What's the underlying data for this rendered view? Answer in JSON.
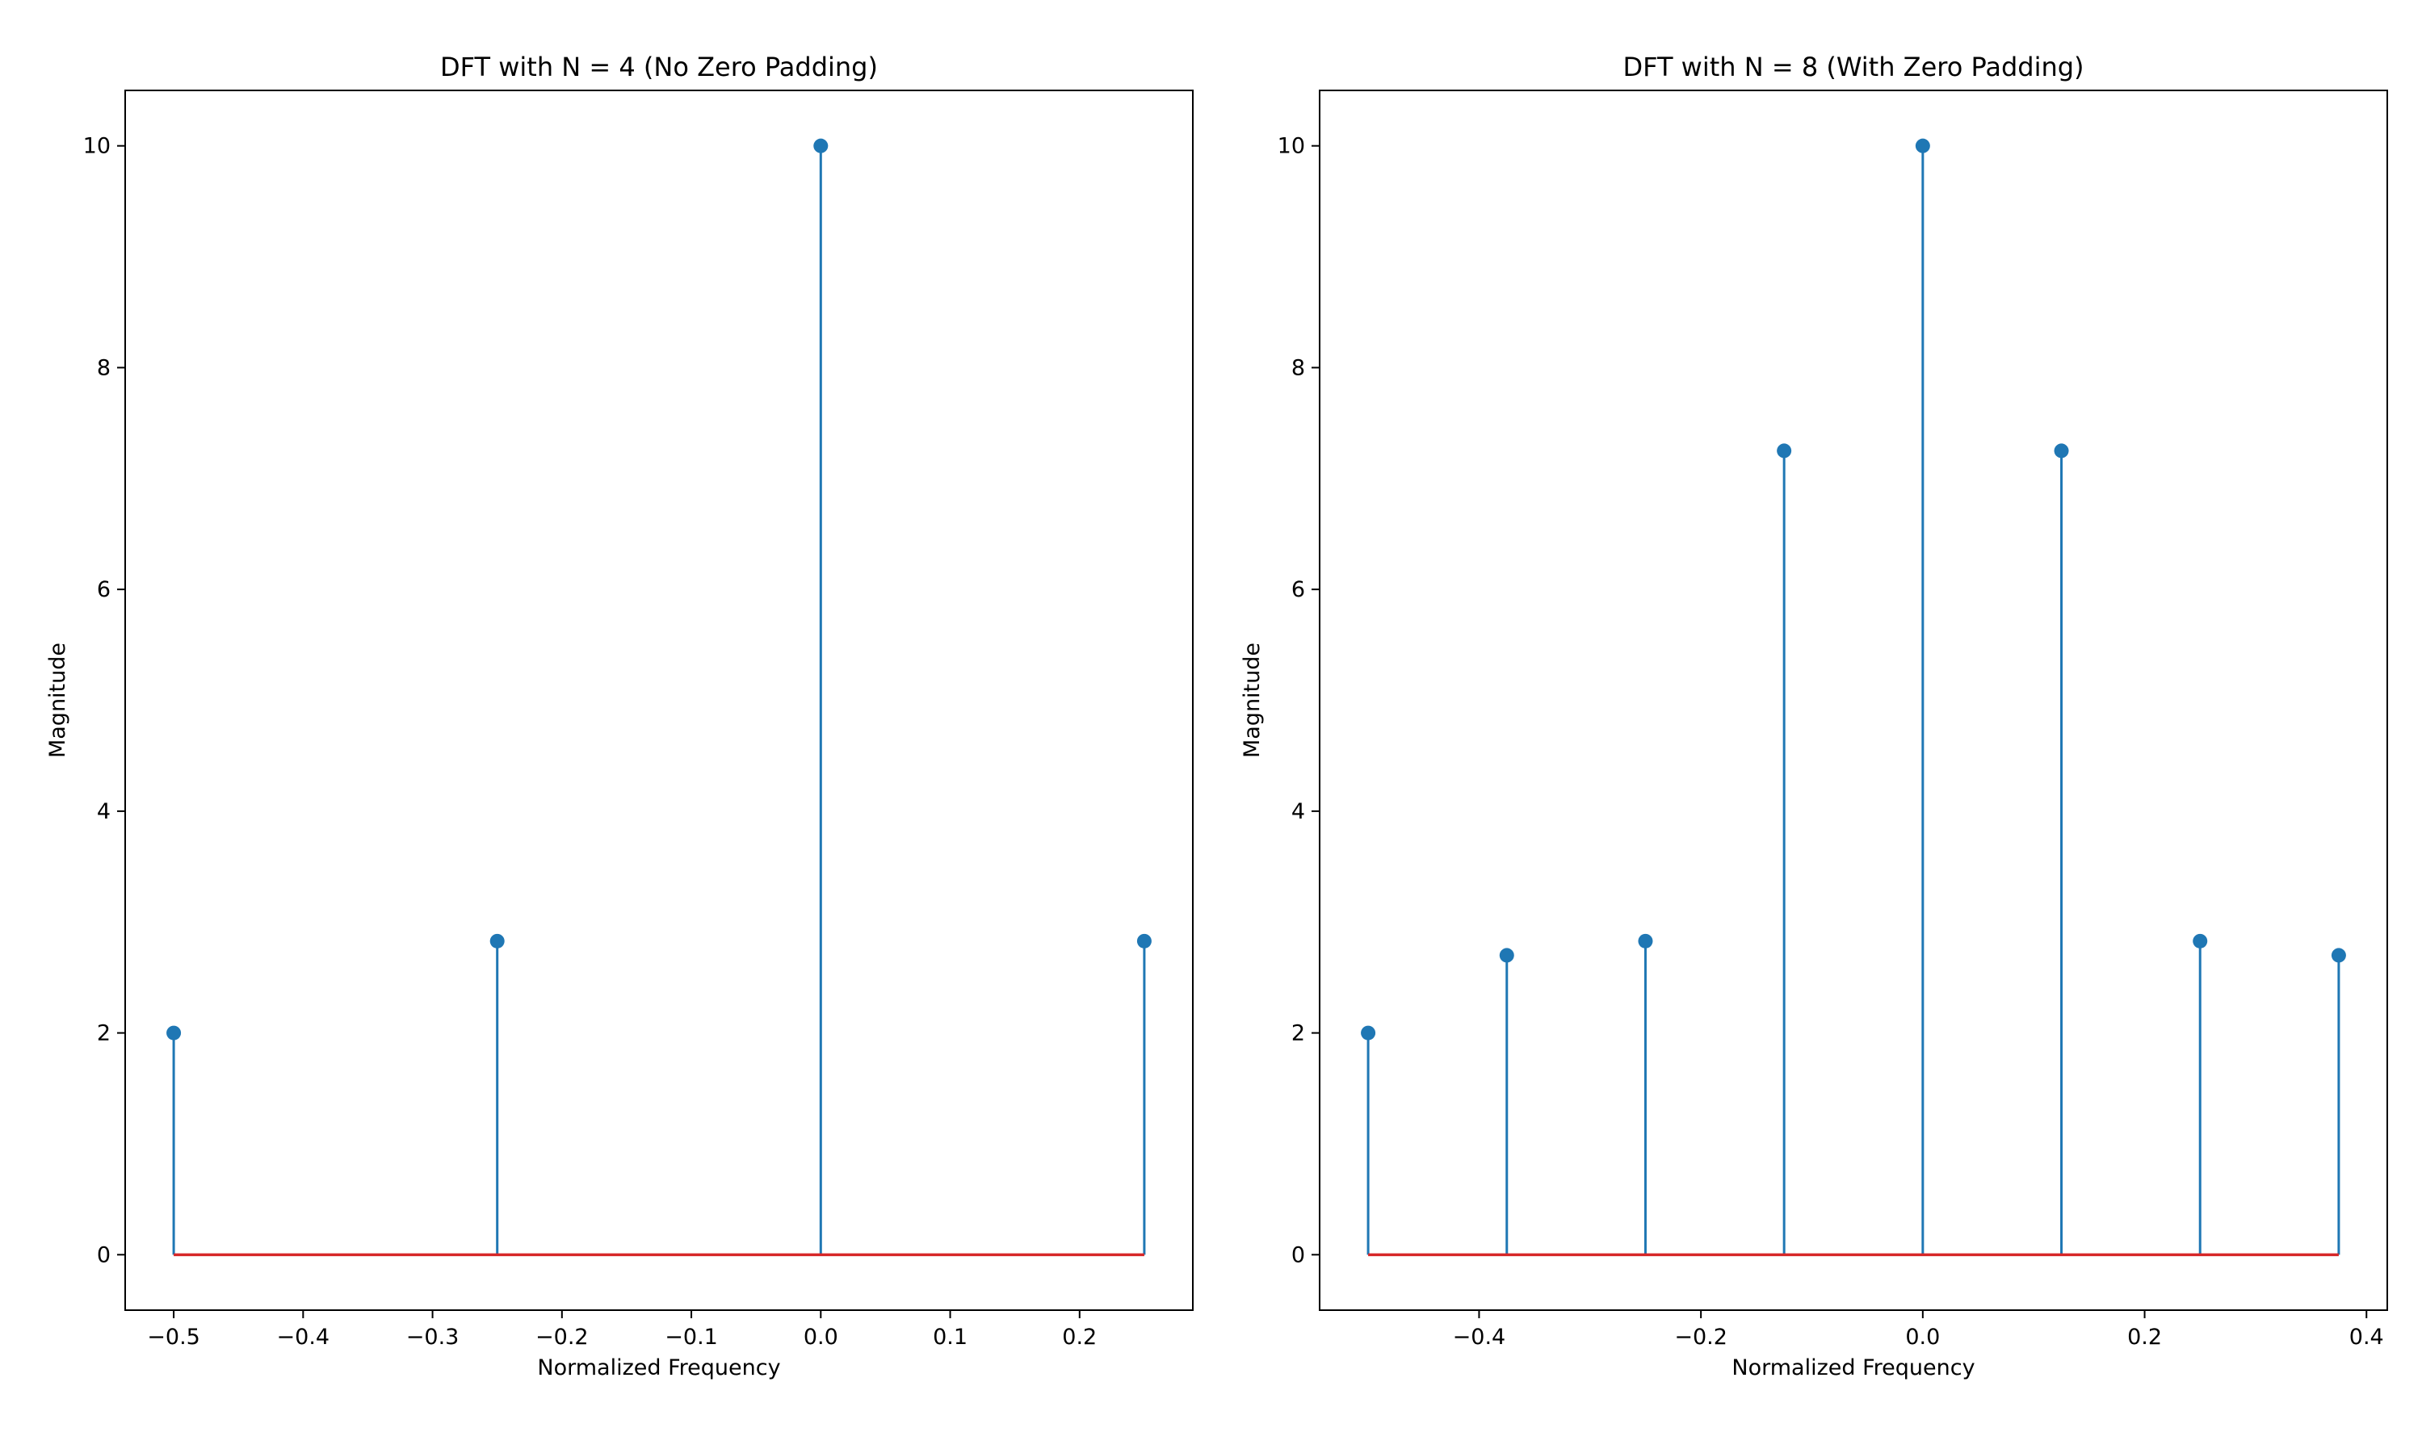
{
  "colors": {
    "stem": "#1f77b4",
    "baseline": "#d62728",
    "axes": "#000000",
    "background": "#ffffff"
  },
  "chart_data": [
    {
      "type": "stem",
      "title": "DFT with N = 4 (No Zero Padding)",
      "xlabel": "Normalized Frequency",
      "ylabel": "Magnitude",
      "x": [
        -0.5,
        -0.25,
        0.0,
        0.25
      ],
      "values": [
        2.0,
        2.828,
        10.0,
        2.828
      ],
      "baseline": 0,
      "xlim": [
        -0.5375,
        0.2875
      ],
      "ylim": [
        -0.5,
        10.5
      ],
      "xticks": [
        -0.5,
        -0.4,
        -0.3,
        -0.2,
        -0.1,
        0.0,
        0.1,
        0.2
      ],
      "xtick_labels": [
        "−0.5",
        "−0.4",
        "−0.3",
        "−0.2",
        "−0.1",
        "0.0",
        "0.1",
        "0.2"
      ],
      "yticks": [
        0,
        2,
        4,
        6,
        8,
        10
      ],
      "ytick_labels": [
        "0",
        "2",
        "4",
        "6",
        "8",
        "10"
      ],
      "grid": false,
      "legend": "none"
    },
    {
      "type": "stem",
      "title": "DFT with N = 8 (With Zero Padding)",
      "xlabel": "Normalized Frequency",
      "ylabel": "Magnitude",
      "x": [
        -0.5,
        -0.375,
        -0.25,
        -0.125,
        0.0,
        0.125,
        0.25,
        0.375
      ],
      "values": [
        2.0,
        2.7,
        2.828,
        7.25,
        10.0,
        7.25,
        2.828,
        2.7
      ],
      "baseline": 0,
      "xlim": [
        -0.54375,
        0.41875
      ],
      "ylim": [
        -0.5,
        10.5
      ],
      "xticks": [
        -0.4,
        -0.2,
        0.0,
        0.2,
        0.4
      ],
      "xtick_labels": [
        "−0.4",
        "−0.2",
        "0.0",
        "0.2",
        "0.4"
      ],
      "yticks": [
        0,
        2,
        4,
        6,
        8,
        10
      ],
      "ytick_labels": [
        "0",
        "2",
        "4",
        "6",
        "8",
        "10"
      ],
      "grid": false,
      "legend": "none"
    }
  ]
}
